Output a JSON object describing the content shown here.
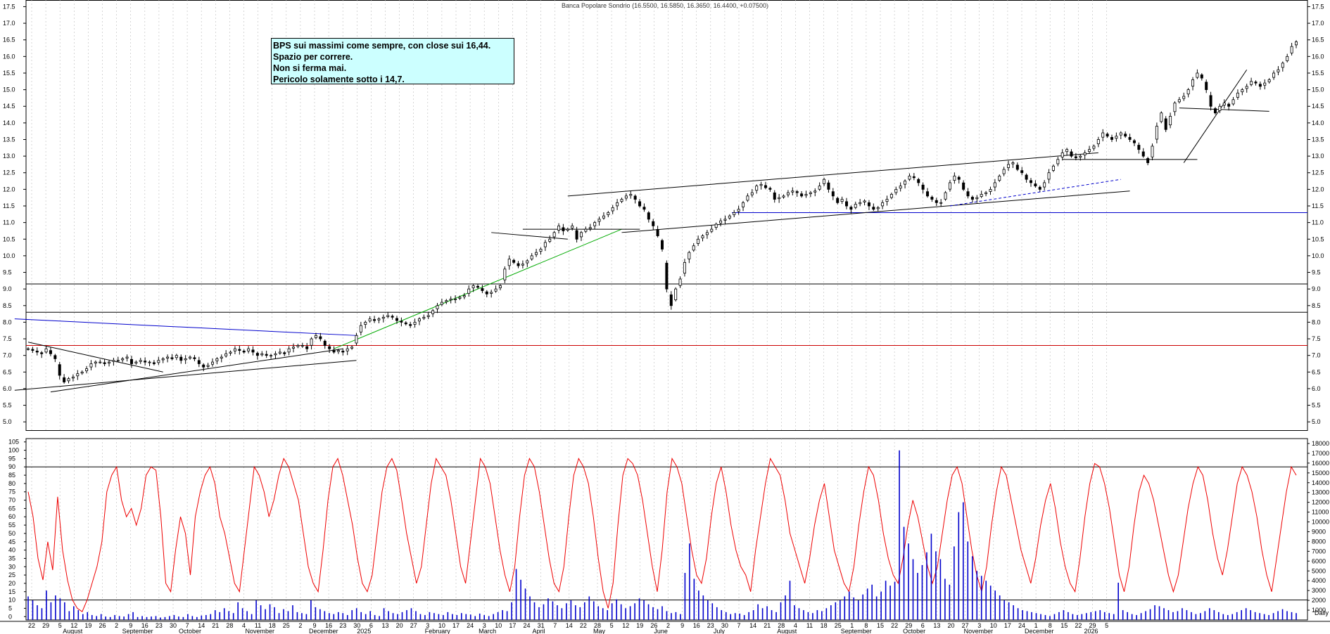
{
  "chart_data": [
    {
      "type": "candlestick",
      "title": "Banca Popolare Sondrio (16.5500, 16.5850, 16.3650, 16.4400, +0.07500)",
      "ylim": [
        4.75,
        17.7
      ],
      "y_ticks": [
        "5.0",
        "5.5",
        "6.0",
        "6.5",
        "7.0",
        "7.5",
        "8.0",
        "8.5",
        "9.0",
        "9.5",
        "10.0",
        "10.5",
        "11.0",
        "11.5",
        "12.0",
        "12.5",
        "13.0",
        "13.5",
        "14.0",
        "14.5",
        "15.0",
        "15.5",
        "16.0",
        "16.5",
        "17.0",
        "17.5"
      ],
      "x_ticks": [
        "22",
        "29",
        "5",
        "12",
        "19",
        "26",
        "2",
        "9",
        "16",
        "23",
        "30",
        "7",
        "14",
        "21",
        "28",
        "4",
        "11",
        "18",
        "25",
        "2",
        "9",
        "16",
        "23",
        "30",
        "6",
        "13",
        "20",
        "27",
        "3",
        "10",
        "17",
        "24",
        "3",
        "10",
        "17",
        "24",
        "31",
        "7",
        "14",
        "22",
        "28",
        "5",
        "12",
        "19",
        "26",
        "2",
        "9",
        "16",
        "23",
        "30",
        "7",
        "14",
        "21",
        "28",
        "4",
        "11",
        "18",
        "25",
        "1",
        "8",
        "15",
        "22",
        "29",
        "6",
        "13",
        "20",
        "27",
        "3",
        "10",
        "17",
        "24",
        "1",
        "8",
        "15",
        "22",
        "29",
        "5"
      ],
      "months": [
        "August",
        "September",
        "October",
        "November",
        "December",
        "2025",
        "February",
        "March",
        "April",
        "May",
        "June",
        "July",
        "August",
        "September",
        "October",
        "November",
        "December",
        "2026"
      ],
      "closes": [
        7.2,
        7.15,
        7.1,
        7.05,
        7.2,
        7.05,
        6.9,
        6.4,
        6.2,
        6.3,
        6.35,
        6.45,
        6.5,
        6.6,
        6.75,
        6.8,
        6.8,
        6.75,
        6.8,
        6.85,
        6.85,
        6.9,
        6.95,
        6.75,
        6.8,
        6.85,
        6.8,
        6.8,
        6.75,
        6.85,
        6.9,
        6.95,
        6.9,
        7.0,
        6.85,
        6.9,
        6.95,
        6.9,
        6.75,
        6.65,
        6.7,
        6.8,
        6.9,
        6.95,
        7.05,
        7.1,
        7.2,
        7.15,
        7.1,
        7.2,
        7.1,
        7.0,
        7.05,
        7.0,
        7.0,
        7.05,
        7.1,
        7.05,
        7.2,
        7.25,
        7.3,
        7.3,
        7.2,
        7.5,
        7.6,
        7.5,
        7.3,
        7.2,
        7.1,
        7.15,
        7.1,
        7.2,
        7.25,
        7.6,
        7.9,
        8.0,
        8.1,
        8.05,
        8.1,
        8.15,
        8.2,
        8.15,
        8.05,
        8.0,
        7.95,
        7.9,
        8.0,
        8.1,
        8.15,
        8.2,
        8.35,
        8.5,
        8.6,
        8.65,
        8.7,
        8.7,
        8.75,
        8.8,
        9.0,
        9.1,
        9.05,
        8.95,
        8.85,
        8.9,
        9.0,
        9.1,
        9.6,
        9.9,
        9.8,
        9.7,
        9.75,
        9.85,
        10.0,
        10.1,
        10.2,
        10.4,
        10.5,
        10.7,
        10.9,
        10.75,
        10.8,
        10.9,
        10.5,
        10.7,
        10.8,
        10.85,
        11.0,
        11.1,
        11.2,
        11.3,
        11.45,
        11.6,
        11.7,
        11.8,
        11.85,
        11.7,
        11.5,
        11.4,
        11.1,
        10.9,
        10.6,
        10.2,
        9.0,
        8.5,
        9.0,
        9.3,
        9.8,
        10.1,
        10.3,
        10.5,
        10.6,
        10.7,
        10.8,
        10.95,
        11.05,
        11.1,
        11.2,
        11.3,
        11.4,
        11.6,
        11.8,
        11.9,
        12.1,
        12.15,
        12.05,
        12.0,
        11.7,
        11.75,
        11.8,
        11.9,
        11.95,
        11.9,
        11.8,
        11.85,
        11.9,
        11.95,
        12.1,
        12.3,
        12.0,
        11.8,
        11.6,
        11.7,
        11.5,
        11.4,
        11.55,
        11.6,
        11.65,
        11.5,
        11.4,
        11.45,
        11.6,
        11.7,
        11.85,
        12.0,
        12.1,
        12.25,
        12.4,
        12.35,
        12.2,
        12.0,
        11.8,
        11.7,
        11.6,
        11.6,
        11.9,
        12.2,
        12.4,
        12.3,
        12.0,
        11.8,
        11.7,
        11.75,
        11.85,
        11.9,
        12.0,
        12.2,
        12.4,
        12.6,
        12.75,
        12.8,
        12.6,
        12.5,
        12.3,
        12.2,
        12.1,
        12.0,
        12.2,
        12.5,
        12.7,
        12.9,
        13.1,
        13.2,
        13.0,
        12.95,
        13.0,
        13.1,
        13.2,
        13.3,
        13.5,
        13.7,
        13.6,
        13.5,
        13.6,
        13.7,
        13.6,
        13.5,
        13.4,
        13.2,
        13.0,
        12.8,
        13.3,
        13.9,
        14.3,
        13.8,
        14.2,
        14.6,
        14.7,
        14.8,
        15.0,
        15.3,
        15.5,
        15.35,
        15.0,
        14.5,
        14.3,
        14.5,
        14.6,
        14.5,
        14.7,
        14.9,
        15.0,
        15.1,
        15.25,
        15.2,
        15.1,
        15.2,
        15.3,
        15.5,
        15.6,
        15.8,
        16.0,
        16.3,
        16.44
      ],
      "stoch_values": [
        75,
        60,
        35,
        22,
        45,
        28,
        72,
        40,
        22,
        10,
        5,
        3,
        10,
        20,
        30,
        45,
        75,
        85,
        90,
        70,
        60,
        65,
        55,
        65,
        85,
        90,
        88,
        60,
        20,
        15,
        40,
        60,
        50,
        25,
        60,
        75,
        85,
        90,
        80,
        60,
        50,
        35,
        20,
        15,
        40,
        65,
        90,
        85,
        75,
        60,
        70,
        85,
        95,
        90,
        80,
        70,
        50,
        30,
        20,
        15,
        40,
        70,
        90,
        95,
        85,
        70,
        55,
        35,
        20,
        15,
        25,
        50,
        75,
        90,
        95,
        88,
        70,
        50,
        35,
        20,
        30,
        55,
        80,
        95,
        90,
        85,
        70,
        50,
        30,
        20,
        45,
        70,
        95,
        90,
        80,
        60,
        40,
        25,
        15,
        30,
        60,
        85,
        95,
        90,
        75,
        55,
        35,
        20,
        15,
        30,
        60,
        85,
        95,
        90,
        80,
        60,
        35,
        15,
        5,
        20,
        55,
        85,
        95,
        92,
        85,
        70,
        50,
        30,
        15,
        40,
        75,
        95,
        90,
        80,
        60,
        40,
        25,
        20,
        35,
        60,
        80,
        90,
        75,
        55,
        40,
        30,
        25,
        15,
        40,
        60,
        80,
        95,
        90,
        85,
        70,
        50,
        40,
        30,
        20,
        35,
        55,
        70,
        80,
        60,
        40,
        30,
        20,
        15,
        30,
        55,
        75,
        90,
        85,
        70,
        50,
        35,
        25,
        20,
        35,
        55,
        70,
        60,
        45,
        30,
        20,
        30,
        50,
        70,
        85,
        90,
        80,
        60,
        40,
        25,
        15,
        30,
        55,
        75,
        90,
        85,
        70,
        55,
        40,
        30,
        20,
        35,
        55,
        70,
        80,
        65,
        45,
        30,
        20,
        15,
        35,
        60,
        80,
        92,
        90,
        80,
        65,
        45,
        25,
        15,
        30,
        55,
        75,
        85,
        80,
        70,
        55,
        40,
        25,
        15,
        25,
        45,
        65,
        80,
        90,
        85,
        70,
        50,
        35,
        25,
        40,
        60,
        80,
        90,
        85,
        75,
        60,
        40,
        25,
        15,
        35,
        55,
        75,
        90,
        85
      ],
      "volume_values": [
        2400,
        2000,
        1500,
        1200,
        3000,
        1800,
        2500,
        2200,
        1800,
        900,
        1400,
        1000,
        600,
        800,
        500,
        400,
        600,
        350,
        300,
        500,
        400,
        350,
        600,
        800,
        300,
        400,
        300,
        350,
        400,
        250,
        300,
        400,
        500,
        350,
        300,
        600,
        400,
        300,
        450,
        500,
        600,
        1000,
        800,
        1200,
        900,
        700,
        1800,
        1200,
        900,
        600,
        2000,
        1500,
        1100,
        1600,
        1300,
        700,
        1100,
        900,
        1500,
        800,
        700,
        600,
        2000,
        1300,
        1100,
        900,
        700,
        600,
        800,
        700,
        500,
        1000,
        1200,
        800,
        600,
        900,
        500,
        400,
        1200,
        900,
        700,
        600,
        800,
        1000,
        1200,
        900,
        600,
        500,
        800,
        700,
        600,
        500,
        800,
        600,
        500,
        700,
        600,
        550,
        400,
        650,
        500,
        400,
        600,
        800,
        1000,
        900,
        1800,
        5200,
        4100,
        3200,
        2400,
        1800,
        1300,
        1600,
        2200,
        1900,
        1500,
        1200,
        1700,
        2000,
        1500,
        1300,
        1800,
        2400,
        1900,
        1400,
        1200,
        1000,
        1700,
        2100,
        1600,
        1200,
        1400,
        1700,
        2200,
        2000,
        1600,
        1300,
        1100,
        1400,
        900,
        700,
        800,
        600,
        4800,
        7800,
        4200,
        3000,
        2500,
        2000,
        1700,
        1300,
        1000,
        800,
        600,
        700,
        650,
        500,
        800,
        1000,
        1600,
        1200,
        1400,
        1000,
        800,
        1800,
        2500,
        4000,
        1500,
        1200,
        1000,
        800,
        700,
        1000,
        900,
        1200,
        1500,
        1800,
        2000,
        2400,
        2900,
        2300,
        2000,
        2600,
        3200,
        3600,
        2400,
        2900,
        4000,
        3500,
        3900,
        17300,
        9500,
        7800,
        6200,
        4800,
        5600,
        6900,
        8800,
        7000,
        6200,
        4200,
        3600,
        7500,
        11000,
        12000,
        8000,
        6500,
        5000,
        4500,
        4000,
        3500,
        3000,
        2500,
        2000,
        1800,
        1500,
        1200,
        1000,
        900,
        800,
        700,
        600,
        500,
        400,
        600,
        800,
        1000,
        800,
        600,
        500,
        600,
        700,
        800,
        900,
        1000,
        800,
        700,
        600,
        3800,
        1000,
        800,
        600,
        500,
        700,
        900,
        1100,
        1500,
        1400,
        1200,
        1000,
        800,
        900,
        1200,
        1000,
        800,
        600,
        700,
        900,
        1200,
        1000,
        800,
        600,
        500,
        600,
        800,
        1000,
        1200,
        1000,
        800,
        700,
        600,
        500,
        700,
        900,
        1100,
        900,
        800,
        700
      ]
    }
  ],
  "annotation": {
    "lines": [
      "BPS sui massimi come sempre, con close sui 16,44.",
      "Spazio per correre.",
      "Non si ferma mai.",
      "Pericolo solamente sotto i 14,7."
    ]
  },
  "stoch_panel": {
    "ticks": [
      "0",
      "5",
      "10",
      "15",
      "20",
      "25",
      "30",
      "35",
      "40",
      "45",
      "50",
      "55",
      "60",
      "65",
      "70",
      "75",
      "80",
      "85",
      "90",
      "95",
      "100",
      "105"
    ],
    "ylim": [
      -2,
      107
    ]
  },
  "volume_panel": {
    "ticks": [
      "1000",
      "2000",
      "3000",
      "4000",
      "5000",
      "6000",
      "7000",
      "8000",
      "9000",
      "10000",
      "11000",
      "12000",
      "13000",
      "14000",
      "15000",
      "16000",
      "17000",
      "18000"
    ],
    "ylim": [
      0,
      18500
    ]
  },
  "x_axis_extra": {
    "end_label": "Daily"
  },
  "colors": {
    "stoch_line": "#ee0000",
    "volume_bar": "#0000cc",
    "support_red": "#cc0000",
    "trend_blue": "#0000cc",
    "trend_green": "#00aa00",
    "grid": "#bbbbbb",
    "annotation_bg": "#ccffff"
  }
}
